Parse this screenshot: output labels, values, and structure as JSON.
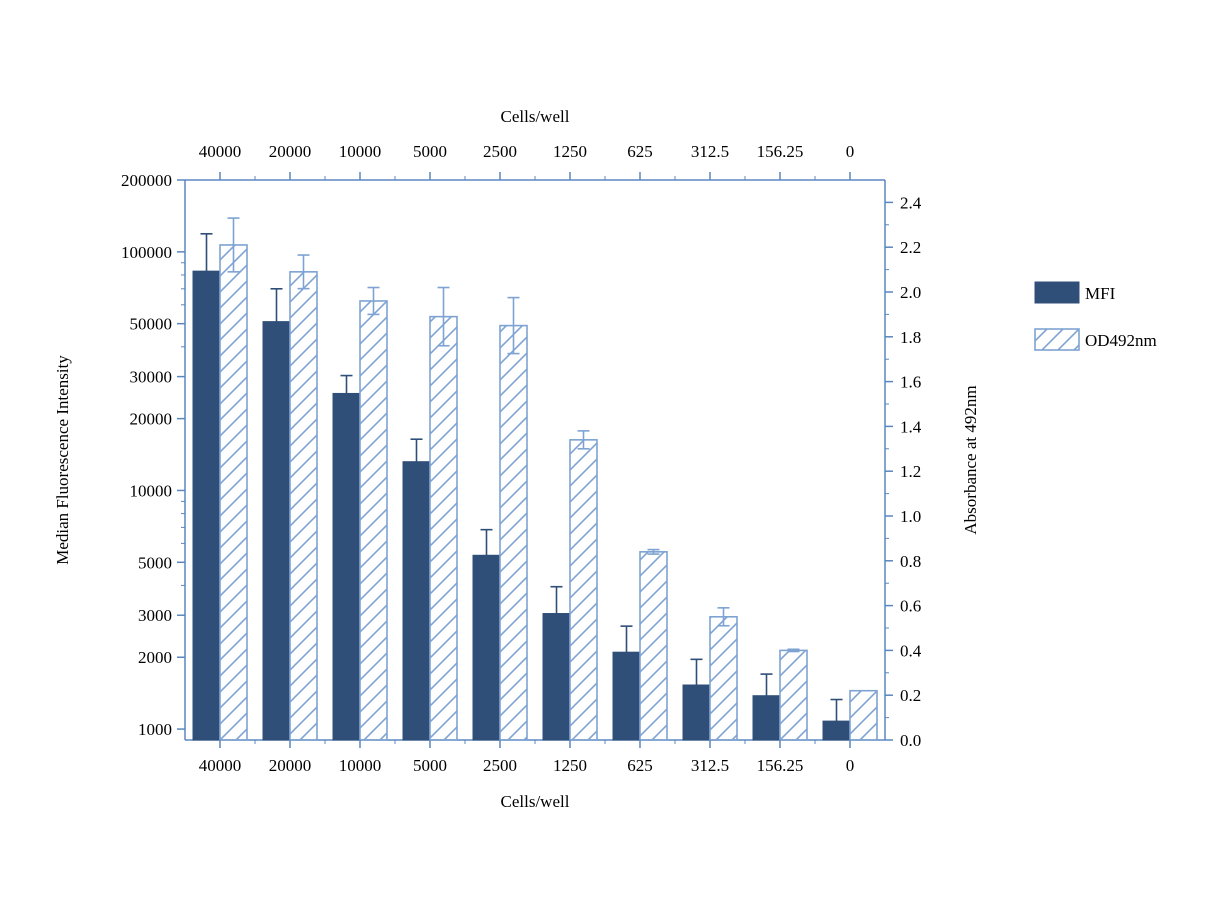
{
  "chart_data": {
    "type": "bar",
    "categories": [
      "40000",
      "20000",
      "10000",
      "5000",
      "2500",
      "1250",
      "625",
      "312.5",
      "156.25",
      "0"
    ],
    "xlabel": "Cells/well",
    "top_xlabel": "Cells/well",
    "ylabel_left": "Median Fluorescence Intensity",
    "ylabel_right": "Absorbance at 492nm",
    "left_axis": {
      "scale": "log",
      "ylim": [
        900,
        200000
      ],
      "tick_values": [
        1000,
        2000,
        3000,
        5000,
        10000,
        20000,
        30000,
        50000,
        100000,
        200000
      ],
      "tick_labels": [
        "1000",
        "2000",
        "3000",
        "5000",
        "10000",
        "20000",
        "30000",
        "50000",
        "100000",
        "200000"
      ]
    },
    "right_axis": {
      "scale": "linear",
      "ylim": [
        0.0,
        2.5
      ],
      "tick_values": [
        0.0,
        0.2,
        0.4,
        0.6,
        0.8,
        1.0,
        1.2,
        1.4,
        1.6,
        1.8,
        2.0,
        2.2,
        2.4
      ],
      "tick_labels": [
        "0.0",
        "0.2",
        "0.4",
        "0.6",
        "0.8",
        "1.0",
        "1.2",
        "1.4",
        "1.6",
        "1.8",
        "2.0",
        "2.2",
        "2.4"
      ]
    },
    "series": [
      {
        "name": "MFI",
        "axis": "left",
        "style": "solid",
        "color": "#2f4f79",
        "values": [
          83000,
          51000,
          25500,
          13200,
          5350,
          3050,
          2100,
          1530,
          1380,
          1080
        ],
        "errors": [
          36000,
          19000,
          4800,
          3200,
          1500,
          900,
          600,
          430,
          320,
          250
        ]
      },
      {
        "name": "OD492nm",
        "axis": "right",
        "style": "hatched",
        "color": "#7ea3d3",
        "values": [
          2.21,
          2.09,
          1.96,
          1.89,
          1.85,
          1.34,
          0.84,
          0.55,
          0.4,
          0.22
        ],
        "errors": [
          0.12,
          0.075,
          0.06,
          0.13,
          0.125,
          0.04,
          0.01,
          0.04,
          0.005,
          0.0
        ]
      }
    ],
    "legend_placement": "right",
    "grid": false
  }
}
